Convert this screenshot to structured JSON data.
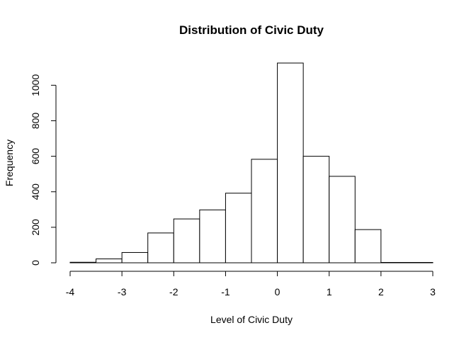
{
  "chart_data": {
    "type": "bar",
    "title": "Distribution of Civic Duty",
    "xlabel": "Level of Civic Duty",
    "ylabel": "Frequency",
    "bins": [
      {
        "start": -4.0,
        "end": -3.5,
        "count": 3
      },
      {
        "start": -3.5,
        "end": -3.0,
        "count": 22
      },
      {
        "start": -3.0,
        "end": -2.5,
        "count": 58
      },
      {
        "start": -2.5,
        "end": -2.0,
        "count": 168
      },
      {
        "start": -2.0,
        "end": -1.5,
        "count": 247
      },
      {
        "start": -1.5,
        "end": -1.0,
        "count": 298
      },
      {
        "start": -1.0,
        "end": -0.5,
        "count": 392
      },
      {
        "start": -0.5,
        "end": 0.0,
        "count": 583
      },
      {
        "start": 0.0,
        "end": 0.5,
        "count": 1125
      },
      {
        "start": 0.5,
        "end": 1.0,
        "count": 600
      },
      {
        "start": 1.0,
        "end": 1.5,
        "count": 487
      },
      {
        "start": 1.5,
        "end": 2.0,
        "count": 187
      },
      {
        "start": 2.0,
        "end": 2.5,
        "count": 2
      },
      {
        "start": 2.5,
        "end": 3.0,
        "count": 2
      }
    ],
    "xlim": [
      -4,
      3
    ],
    "ylim": [
      0,
      1125
    ],
    "x_ticks": [
      -4,
      -3,
      -2,
      -1,
      0,
      1,
      2,
      3
    ],
    "x_tick_labels": [
      "-4",
      "-3",
      "-2",
      "-1",
      "0",
      "1",
      "2",
      "3"
    ],
    "y_ticks": [
      0,
      200,
      400,
      600,
      800,
      1000
    ],
    "y_tick_labels": [
      "0",
      "200",
      "400",
      "600",
      "800",
      "1000"
    ],
    "grid": false,
    "legend": "none"
  }
}
